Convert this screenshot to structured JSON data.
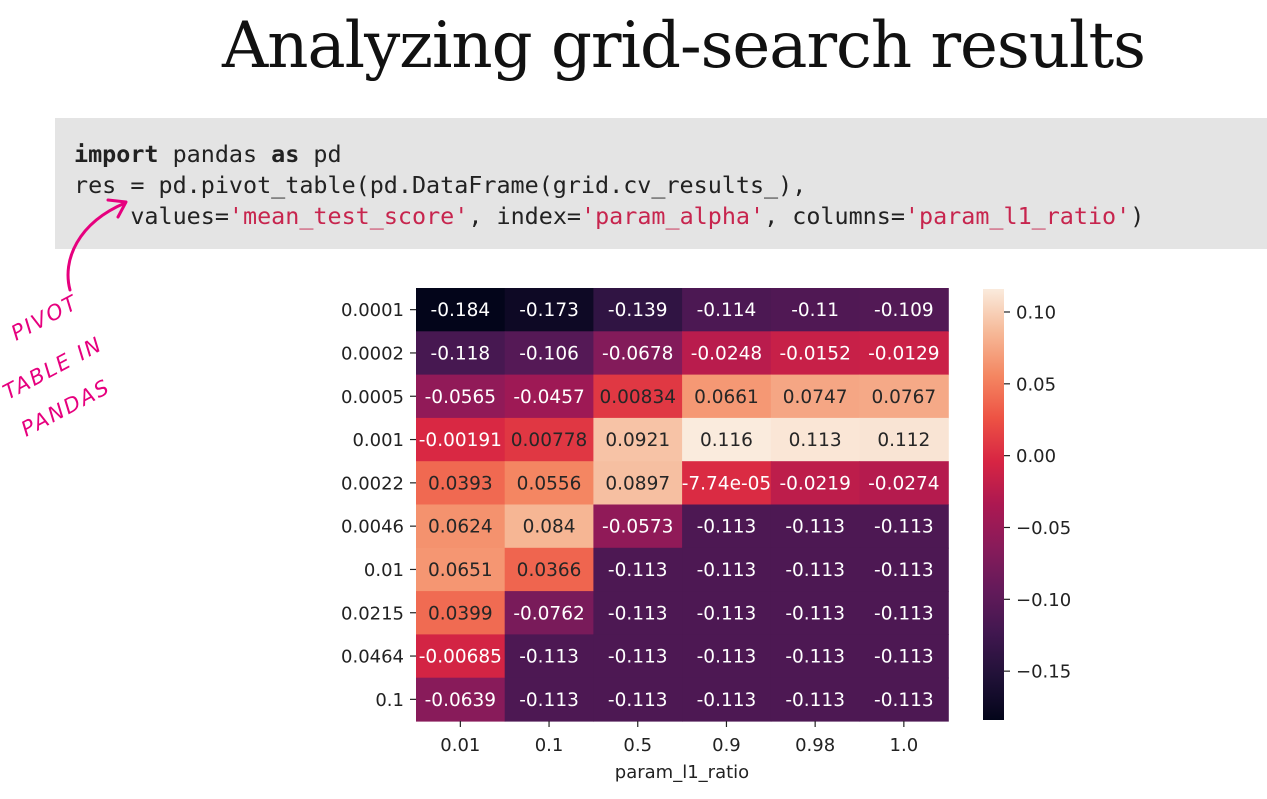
{
  "slide": {
    "title": "Analyzing grid-search results"
  },
  "code": {
    "line1": {
      "kw1": "import",
      "t1": " pandas ",
      "kw2": "as",
      "t2": " pd"
    },
    "line2": {
      "t1": "res = pd.pivot_table(pd.DataFrame(grid.cv_results_),"
    },
    "line3": {
      "indent": "    ",
      "a1": "values=",
      "s1": "'mean_test_score'",
      "a2": ", index=",
      "s2": "'param_alpha'",
      "a3": ", columns=",
      "s3": "'param_l1_ratio'",
      "end": ")"
    }
  },
  "annotation": {
    "lines": [
      "PIVOT",
      "TABLE IN",
      "PANDAS"
    ],
    "color": "#e6007e"
  },
  "chart_data": {
    "type": "heatmap",
    "title": "",
    "xlabel": "param_l1_ratio",
    "ylabel": "",
    "x_categories": [
      "0.01",
      "0.1",
      "0.5",
      "0.9",
      "0.98",
      "1.0"
    ],
    "y_categories": [
      "0.0001",
      "0.0002",
      "0.0005",
      "0.001",
      "0.0022",
      "0.0046",
      "0.01",
      "0.0215",
      "0.0464",
      "0.1"
    ],
    "values": [
      [
        -0.184,
        -0.173,
        -0.139,
        -0.114,
        -0.11,
        -0.109
      ],
      [
        -0.118,
        -0.106,
        -0.0678,
        -0.0248,
        -0.0152,
        -0.0129
      ],
      [
        -0.0565,
        -0.0457,
        0.00834,
        0.0661,
        0.0747,
        0.0767
      ],
      [
        -0.00191,
        0.00778,
        0.0921,
        0.116,
        0.113,
        0.112
      ],
      [
        0.0393,
        0.0556,
        0.0897,
        -7.74e-05,
        -0.0219,
        -0.0274
      ],
      [
        0.0624,
        0.084,
        -0.0573,
        -0.113,
        -0.113,
        -0.113
      ],
      [
        0.0651,
        0.0366,
        -0.113,
        -0.113,
        -0.113,
        -0.113
      ],
      [
        0.0399,
        -0.0762,
        -0.113,
        -0.113,
        -0.113,
        -0.113
      ],
      [
        -0.00685,
        -0.113,
        -0.113,
        -0.113,
        -0.113,
        -0.113
      ],
      [
        -0.0639,
        -0.113,
        -0.113,
        -0.113,
        -0.113,
        -0.113
      ]
    ],
    "cell_labels": [
      [
        "-0.184",
        "-0.173",
        "-0.139",
        "-0.114",
        "-0.11",
        "-0.109"
      ],
      [
        "-0.118",
        "-0.106",
        "-0.0678",
        "-0.0248",
        "-0.0152",
        "-0.0129"
      ],
      [
        "-0.0565",
        "-0.0457",
        "0.00834",
        "0.0661",
        "0.0747",
        "0.0767"
      ],
      [
        "-0.00191",
        "0.00778",
        "0.0921",
        "0.116",
        "0.113",
        "0.112"
      ],
      [
        "0.0393",
        "0.0556",
        "0.0897",
        "-7.74e-05",
        "-0.0219",
        "-0.0274"
      ],
      [
        "0.0624",
        "0.084",
        "-0.0573",
        "-0.113",
        "-0.113",
        "-0.113"
      ],
      [
        "0.0651",
        "0.0366",
        "-0.113",
        "-0.113",
        "-0.113",
        "-0.113"
      ],
      [
        "0.0399",
        "-0.0762",
        "-0.113",
        "-0.113",
        "-0.113",
        "-0.113"
      ],
      [
        "-0.00685",
        "-0.113",
        "-0.113",
        "-0.113",
        "-0.113",
        "-0.113"
      ],
      [
        "-0.0639",
        "-0.113",
        "-0.113",
        "-0.113",
        "-0.113",
        "-0.113"
      ]
    ],
    "colorbar": {
      "vmin": -0.184,
      "vmax": 0.116,
      "ticks": [
        0.1,
        0.05,
        0.0,
        -0.05,
        -0.1,
        -0.15
      ],
      "tick_labels": [
        "0.10",
        "0.05",
        "0.00",
        "−0.05",
        "−0.10",
        "−0.15"
      ]
    },
    "colormap": "rocket",
    "annotated": true,
    "grid": false
  }
}
